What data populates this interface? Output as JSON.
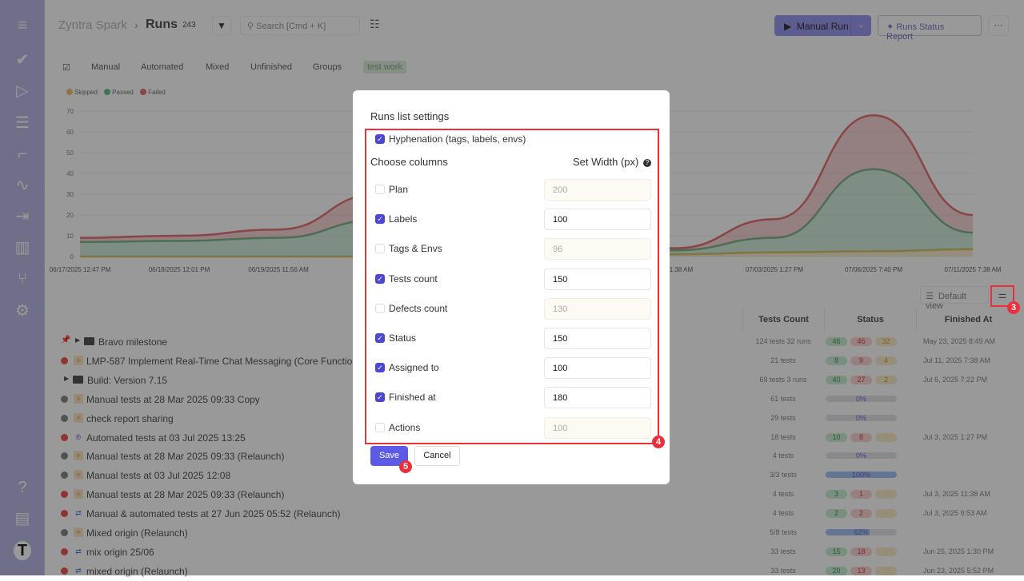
{
  "sidebar": {
    "items": [
      {
        "icon": "menu-icon",
        "glyph": "≡"
      },
      {
        "icon": "check-icon",
        "glyph": "✔"
      },
      {
        "icon": "play-circle-icon",
        "glyph": "▷"
      },
      {
        "icon": "list-check-icon",
        "glyph": "☰"
      },
      {
        "icon": "stairs-icon",
        "glyph": "⌐"
      },
      {
        "icon": "pulse-icon",
        "glyph": "∿"
      },
      {
        "icon": "import-icon",
        "glyph": "⇥"
      },
      {
        "icon": "analytics-icon",
        "glyph": "▥"
      },
      {
        "icon": "branch-icon",
        "glyph": "⑂"
      },
      {
        "icon": "gear-icon",
        "glyph": "⚙"
      }
    ],
    "bottom": [
      {
        "icon": "help-icon",
        "glyph": "?"
      },
      {
        "icon": "folders-icon",
        "glyph": "▤"
      },
      {
        "icon": "avatar-icon",
        "glyph": "T"
      }
    ]
  },
  "header": {
    "project": "Zyntra Spark",
    "separator": "›",
    "title": "Runs",
    "count": "243",
    "search_placeholder": "Search [Cmd + K]",
    "manual_run": "Manual Run",
    "report": "Runs Status Report",
    "more": "···"
  },
  "tabs": [
    "Manual",
    "Automated",
    "Mixed",
    "Unfinished",
    "Groups",
    "test work"
  ],
  "active_tab": "test work",
  "view": {
    "default_view": "Default view"
  },
  "chart_data": {
    "type": "area",
    "stacked": true,
    "x_labels": [
      "06/17/2025 12:47 PM",
      "06/18/2025 12:01 PM",
      "06/19/2025 11:56 AM",
      "06/2",
      "",
      "",
      "25 11:38 AM",
      "07/03/2025 1:27 PM",
      "07/06/2025 7:40 PM",
      "07/11/2025 7:38 AM"
    ],
    "y_ticks": [
      0,
      10,
      20,
      30,
      40,
      50,
      60,
      70
    ],
    "ylim": [
      0,
      70
    ],
    "grid": true,
    "legend_position": "top-left",
    "series": [
      {
        "name": "Skipped",
        "color": "#e8c567",
        "values": [
          0,
          0,
          0,
          0,
          0.5,
          1,
          1,
          2,
          2.5,
          3.5
        ]
      },
      {
        "name": "Passed",
        "color": "#6fc28e",
        "values": [
          7,
          7.5,
          9,
          17.5,
          13.5,
          5,
          2,
          7,
          39.5,
          8
        ]
      },
      {
        "name": "Failed",
        "color": "#e57373",
        "values": [
          2,
          2.5,
          4,
          12.5,
          8,
          4,
          1,
          9,
          26,
          8.5
        ]
      }
    ]
  },
  "table": {
    "columns": [
      "Tests Count",
      "Status",
      "Finished At"
    ],
    "rows": [
      {
        "name": "Bravo milestone",
        "kind": "group",
        "pinned": true,
        "tests": "124 tests 32 runs",
        "passed": "46",
        "failed": "46",
        "skipped": "32",
        "finished": "May 23, 2025 8:49 AM"
      },
      {
        "name": "LMP-587 Implement Real-Time Chat Messaging (Core Functionality)",
        "kind": "manual",
        "state": "failed",
        "tests": "21 tests",
        "passed": "8",
        "failed": "9",
        "skipped": "4",
        "finished": "Jul 11, 2025 7:38 AM"
      },
      {
        "name": "Build: Version 7.15",
        "kind": "group",
        "tests": "69 tests 3 runs",
        "passed": "40",
        "failed": "27",
        "skipped": "2",
        "finished": "Jul 6, 2025 7:22 PM"
      },
      {
        "name": "Manual tests at 28 Mar 2025 09:33 Copy",
        "kind": "manual",
        "state": "pending",
        "tests": "61 tests",
        "progress": "0%",
        "progress_value": 0
      },
      {
        "name": "check report sharing",
        "kind": "manual",
        "state": "pending",
        "tests": "29 tests",
        "progress": "0%",
        "progress_value": 0
      },
      {
        "name": "Automated tests at 03 Jul 2025 13:25",
        "kind": "automated",
        "state": "failed",
        "tests": "18 tests",
        "passed": "10",
        "failed": "8",
        "skipped": "0",
        "finished": "Jul 3, 2025 1:27 PM"
      },
      {
        "name": "Manual tests at 28 Mar 2025 09:33 (Relaunch)",
        "kind": "manual",
        "state": "pending",
        "tests": "4 tests",
        "progress": "0%",
        "progress_value": 0
      },
      {
        "name": "Manual tests at 03 Jul 2025 12:08",
        "kind": "manual",
        "state": "pending",
        "tests": "3/3 tests",
        "progress": "100%",
        "progress_value": 100
      },
      {
        "name": "Manual tests at 28 Mar 2025 09:33 (Relaunch)",
        "kind": "manual",
        "state": "failed",
        "tests": "4 tests",
        "passed": "3",
        "failed": "1",
        "skipped": "0",
        "finished": "Jul 3, 2025 11:38 AM"
      },
      {
        "name": "Manual & automated tests at 27 Jun 2025 05:52 (Relaunch)",
        "kind": "mixed",
        "state": "failed",
        "tests": "4 tests",
        "passed": "2",
        "failed": "2",
        "skipped": "0",
        "finished": "Jul 3, 2025 9:53 AM"
      },
      {
        "name": "Mixed origin (Relaunch)",
        "kind": "manual",
        "state": "pending",
        "tests": "5/8 tests",
        "progress": "62%",
        "progress_value": 62
      },
      {
        "name": "mix origin 25/06",
        "kind": "mixed",
        "state": "failed",
        "tests": "33 tests",
        "passed": "15",
        "failed": "18",
        "skipped": "0",
        "finished": "Jun 25, 2025 1:30 PM"
      },
      {
        "name": "mixed origin (Relaunch)",
        "kind": "mixed",
        "state": "failed",
        "tests": "33 tests",
        "passed": "20",
        "failed": "13",
        "skipped": "0",
        "finished": "Jun 23, 2025 5:52 PM"
      }
    ]
  },
  "modal": {
    "title": "Runs list settings",
    "hyphenation": {
      "label": "Hyphenation (tags, labels, envs)",
      "checked": true
    },
    "choose_columns": "Choose columns",
    "set_width": "Set Width (px)",
    "columns": [
      {
        "label": "Plan",
        "checked": false,
        "width": "200"
      },
      {
        "label": "Labels",
        "checked": true,
        "width": "100"
      },
      {
        "label": "Tags & Envs",
        "checked": false,
        "width": "96"
      },
      {
        "label": "Tests count",
        "checked": true,
        "width": "150"
      },
      {
        "label": "Defects count",
        "checked": false,
        "width": "130"
      },
      {
        "label": "Status",
        "checked": true,
        "width": "150"
      },
      {
        "label": "Assigned to",
        "checked": true,
        "width": "100"
      },
      {
        "label": "Finished at",
        "checked": true,
        "width": "180"
      },
      {
        "label": "Actions",
        "checked": false,
        "width": "100"
      }
    ],
    "save": "Save",
    "cancel": "Cancel"
  },
  "annotations": [
    "3",
    "4",
    "5"
  ],
  "colors": {
    "accent": "#5b5be6",
    "highlight": "#ef2e3c"
  }
}
